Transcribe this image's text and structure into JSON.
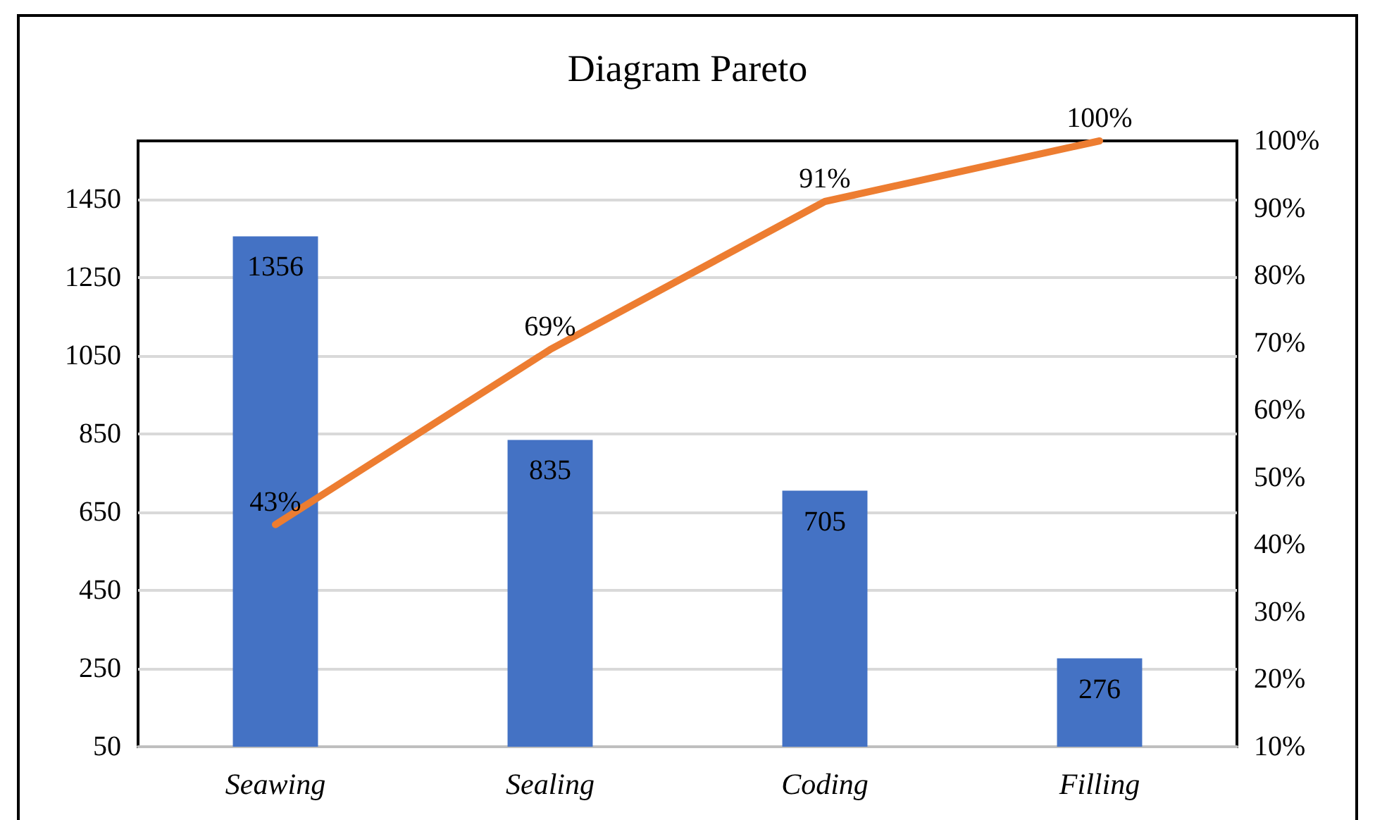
{
  "chart_data": {
    "type": "bar",
    "title": "Diagram Pareto",
    "categories": [
      "Seawing",
      "Sealing",
      "Coding",
      "Filling"
    ],
    "series": [
      {
        "color": "#4472c4",
        "values": [
          1356,
          835,
          705,
          276
        ],
        "data_labels": true
      },
      {
        "type": "line",
        "axis": "y2",
        "color": "#ed7d31",
        "values": [
          43,
          69,
          91,
          100
        ],
        "value_labels": [
          "43%",
          "69%",
          "91%",
          "100%"
        ]
      }
    ],
    "ylim": [
      50,
      1600
    ],
    "yticks": [
      50,
      250,
      450,
      650,
      850,
      1050,
      1250,
      1450
    ],
    "y2lim": [
      10,
      100
    ],
    "y2ticks": [
      {
        "value": 10,
        "label": "10%"
      },
      {
        "value": 20,
        "label": "20%"
      },
      {
        "value": 30,
        "label": "30%"
      },
      {
        "value": 40,
        "label": "40%"
      },
      {
        "value": 50,
        "label": "50%"
      },
      {
        "value": 60,
        "label": "60%"
      },
      {
        "value": 70,
        "label": "70%"
      },
      {
        "value": 80,
        "label": "80%"
      },
      {
        "value": 90,
        "label": "90%"
      },
      {
        "value": 100,
        "label": "100%"
      }
    ],
    "grid": "y",
    "marker": "none",
    "line_style": "solid"
  }
}
